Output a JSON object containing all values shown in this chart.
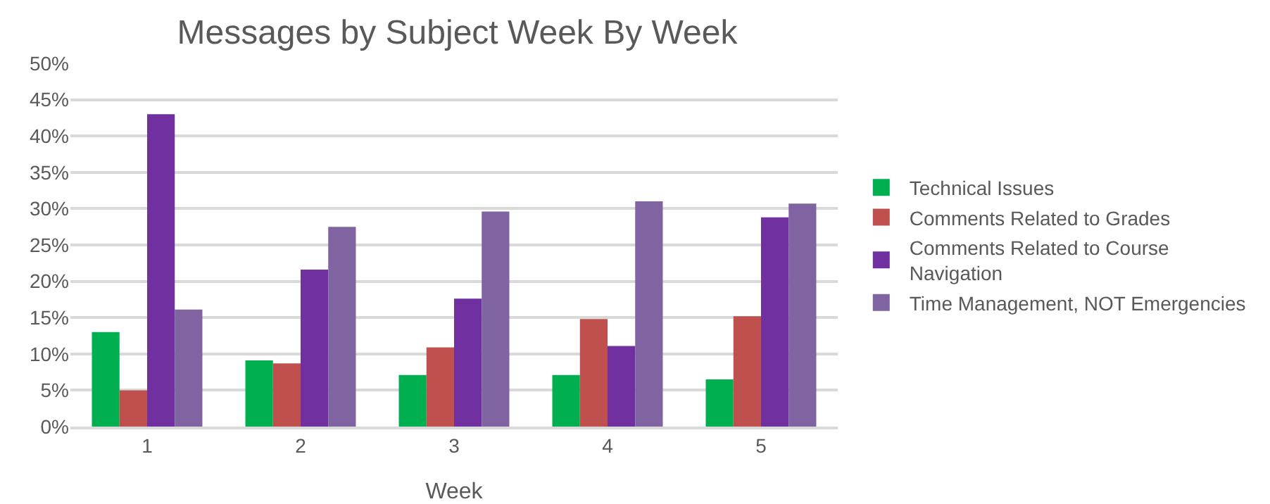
{
  "chart_data": {
    "type": "bar",
    "title": "Messages by Subject Week By Week",
    "xlabel": "Week",
    "categories": [
      "1",
      "2",
      "3",
      "4",
      "5"
    ],
    "series": [
      {
        "name": "Technical Issues",
        "color": "#00b050",
        "values": [
          13.0,
          9.1,
          7.1,
          7.1,
          6.5
        ]
      },
      {
        "name": "Comments Related to Grades",
        "color": "#c0504d",
        "values": [
          5.0,
          8.7,
          10.9,
          14.8,
          15.2
        ]
      },
      {
        "name": "Comments Related to Course Navigation",
        "color": "#7030a0",
        "values": [
          43.0,
          21.6,
          17.6,
          11.1,
          28.8
        ]
      },
      {
        "name": "Time Management, NOT Emergencies",
        "color": "#8064a2",
        "values": [
          16.1,
          27.5,
          29.6,
          31.0,
          30.7
        ]
      }
    ],
    "ylim": [
      0,
      50
    ],
    "yticks": [
      {
        "value": 0,
        "label": "0%"
      },
      {
        "value": 5,
        "label": "5%"
      },
      {
        "value": 10,
        "label": "10%"
      },
      {
        "value": 15,
        "label": "15%"
      },
      {
        "value": 20,
        "label": "20%"
      },
      {
        "value": 25,
        "label": "25%"
      },
      {
        "value": 30,
        "label": "30%"
      },
      {
        "value": 35,
        "label": "35%"
      },
      {
        "value": 40,
        "label": "40%"
      },
      {
        "value": 45,
        "label": "45%"
      },
      {
        "value": 50,
        "label": "50%"
      }
    ],
    "grid": "y",
    "legend": "right"
  }
}
